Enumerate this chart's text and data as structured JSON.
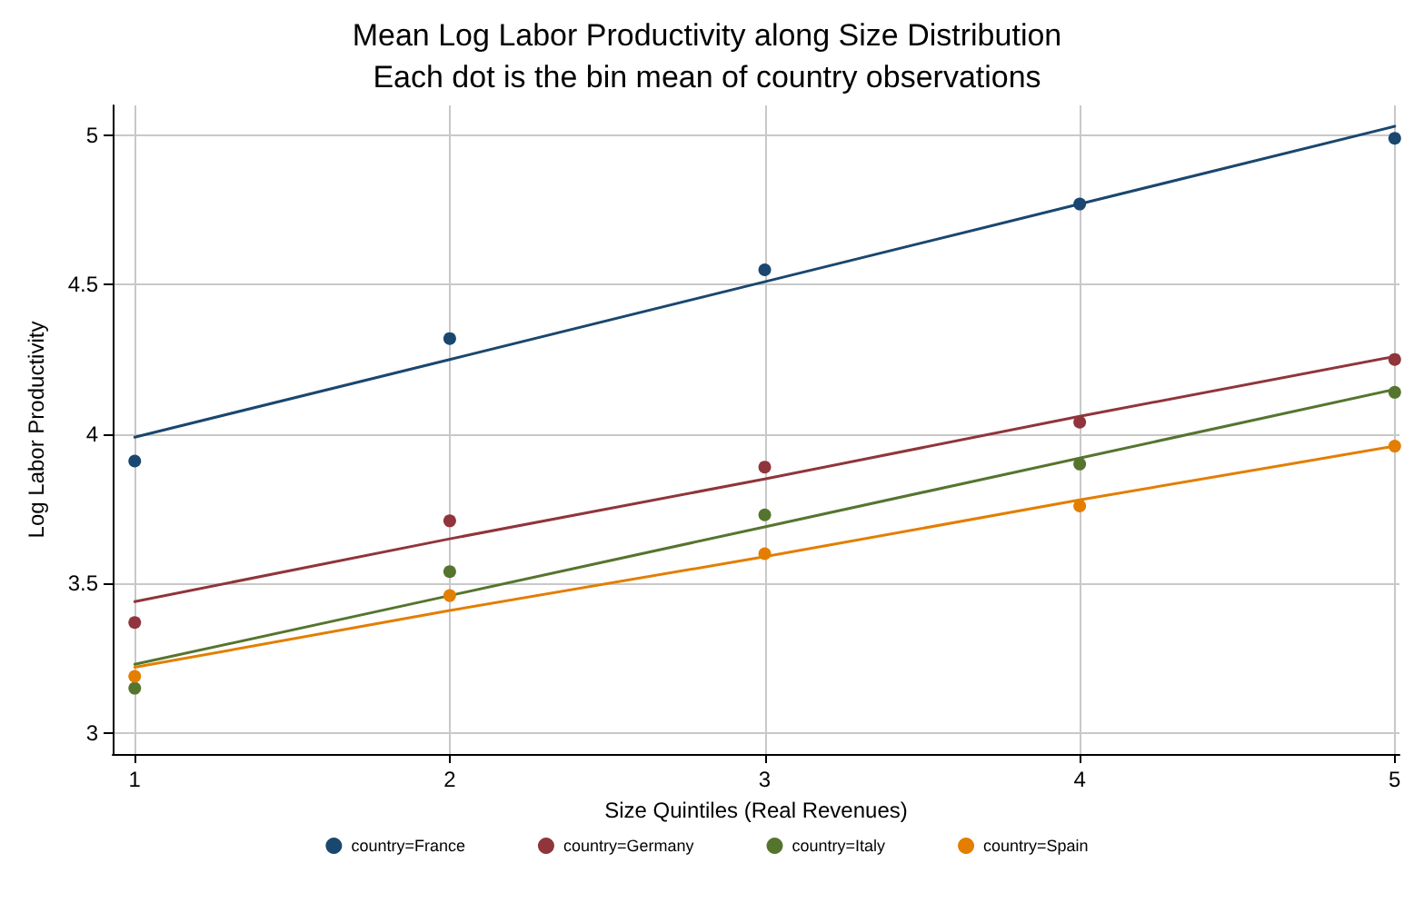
{
  "chart_data": {
    "type": "scatter",
    "title": "Mean Log Labor Productivity along Size Distribution",
    "subtitle": "Each dot is the bin mean of country observations",
    "xlabel": "Size Quintiles (Real Revenues)",
    "ylabel": "Log Labor Productivity",
    "x": [
      1,
      2,
      3,
      4,
      5
    ],
    "series": [
      {
        "name": "country=France",
        "color": "#1a476f",
        "values": [
          3.91,
          4.32,
          4.55,
          4.77,
          4.99
        ]
      },
      {
        "name": "country=Germany",
        "color": "#90353b",
        "values": [
          3.37,
          3.71,
          3.89,
          4.04,
          4.25
        ]
      },
      {
        "name": "country=Italy",
        "color": "#55752f",
        "values": [
          3.15,
          3.54,
          3.73,
          3.9,
          4.14
        ]
      },
      {
        "name": "country=Spain",
        "color": "#e37e00",
        "values": [
          3.19,
          3.46,
          3.6,
          3.76,
          3.96
        ]
      },
      {
        "type": "line",
        "marker": "none",
        "color": "#1a476f",
        "values": [
          3.99,
          4.25,
          4.51,
          4.77,
          5.03
        ]
      },
      {
        "type": "line",
        "marker": "none",
        "color": "#90353b",
        "values": [
          3.44,
          3.65,
          3.85,
          4.06,
          4.26
        ]
      },
      {
        "type": "line",
        "marker": "none",
        "color": "#55752f",
        "values": [
          3.23,
          3.46,
          3.69,
          3.92,
          4.15
        ]
      },
      {
        "type": "line",
        "marker": "none",
        "color": "#e37e00",
        "values": [
          3.22,
          3.41,
          3.59,
          3.78,
          3.96
        ]
      }
    ],
    "xlim": [
      0.93,
      5.015
    ],
    "xticks": [
      1,
      2,
      3,
      4,
      5
    ],
    "ylim": [
      2.93,
      5.1
    ],
    "yticks": [
      3,
      3.5,
      4,
      4.5,
      5
    ],
    "grid": true,
    "legend": "bottom",
    "marker": "circle",
    "line_style": "solid"
  }
}
